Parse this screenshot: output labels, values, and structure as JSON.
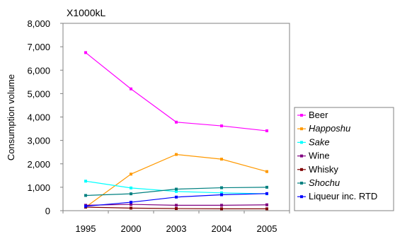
{
  "chart_data": {
    "type": "line",
    "unit_label": "X1000kL",
    "xlabel": "",
    "ylabel": "Consumption volume",
    "categories": [
      "1995",
      "2000",
      "2003",
      "2004",
      "2005"
    ],
    "ylim": [
      0,
      8000
    ],
    "yticks": [
      0,
      1000,
      2000,
      3000,
      4000,
      5000,
      6000,
      7000,
      8000
    ],
    "ytick_labels": [
      "0",
      "1,000",
      "2,000",
      "3,000",
      "4,000",
      "5,000",
      "6,000",
      "7,000",
      "8,000"
    ],
    "grid": false,
    "legend_position": "right",
    "series": [
      {
        "name": "Beer",
        "italic": false,
        "color": "#ff00ff",
        "values": [
          6750,
          5200,
          3780,
          3620,
          3410
        ]
      },
      {
        "name": "Happoshu",
        "italic": true,
        "color": "#ff9900",
        "values": [
          150,
          1560,
          2400,
          2200,
          1670
        ]
      },
      {
        "name": "Sake",
        "italic": true,
        "color": "#00ffff",
        "values": [
          1260,
          970,
          820,
          760,
          720
        ]
      },
      {
        "name": "Wine",
        "italic": false,
        "color": "#800080",
        "values": [
          230,
          270,
          230,
          230,
          250
        ]
      },
      {
        "name": "Whisky",
        "italic": false,
        "color": "#800000",
        "values": [
          150,
          110,
          90,
          80,
          80
        ]
      },
      {
        "name": "Shochu",
        "italic": true,
        "color": "#008080",
        "values": [
          650,
          720,
          920,
          980,
          1000
        ]
      },
      {
        "name": "Liqueur inc. RTD",
        "italic": false,
        "color": "#0000ff",
        "values": [
          190,
          360,
          580,
          680,
          730
        ]
      }
    ]
  }
}
